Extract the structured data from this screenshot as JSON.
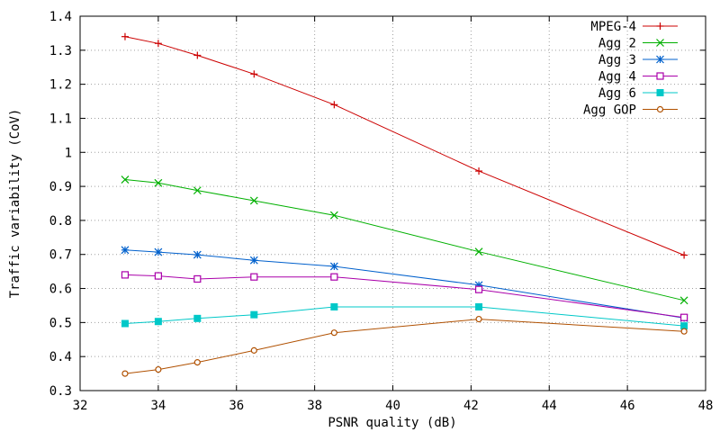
{
  "chart_data": {
    "type": "line",
    "xlabel": "PSNR quality (dB)",
    "ylabel": "Traffic variability (CoV)",
    "xlim": [
      32,
      48
    ],
    "ylim": [
      0.3,
      1.4
    ],
    "x_ticks": [
      32,
      34,
      36,
      38,
      40,
      42,
      44,
      46,
      48
    ],
    "y_ticks": [
      0.3,
      0.4,
      0.5,
      0.6,
      0.7,
      0.8,
      0.9,
      1,
      1.1,
      1.2,
      1.3,
      1.4
    ],
    "x_tick_labels": [
      "32",
      "34",
      "36",
      "38",
      "40",
      "42",
      "44",
      "46",
      "48"
    ],
    "y_tick_labels": [
      "0.3",
      "0.4",
      "0.5",
      "0.6",
      "0.7",
      "0.8",
      "0.9",
      "1",
      "1.1",
      "1.2",
      "1.3",
      "1.4"
    ],
    "grid": true,
    "legend_position": "top-right",
    "series": [
      {
        "name": "MPEG-4",
        "color": "#cc0000",
        "marker": "plus",
        "x": [
          33.15,
          34.0,
          35.0,
          36.45,
          38.5,
          42.2,
          47.45
        ],
        "y": [
          1.34,
          1.32,
          1.285,
          1.23,
          1.14,
          0.945,
          0.698
        ]
      },
      {
        "name": "Agg 2",
        "color": "#00b000",
        "marker": "cross",
        "x": [
          33.15,
          34.0,
          35.0,
          36.45,
          38.5,
          42.2,
          47.45
        ],
        "y": [
          0.92,
          0.91,
          0.888,
          0.858,
          0.815,
          0.708,
          0.565
        ]
      },
      {
        "name": "Agg 3",
        "color": "#0060cc",
        "marker": "star",
        "x": [
          33.15,
          34.0,
          35.0,
          36.45,
          38.5,
          42.2,
          47.45
        ],
        "y": [
          0.713,
          0.707,
          0.699,
          0.683,
          0.665,
          0.61,
          0.513
        ]
      },
      {
        "name": "Agg 4",
        "color": "#aa00aa",
        "marker": "square-open",
        "x": [
          33.15,
          34.0,
          35.0,
          36.45,
          38.5,
          42.2,
          47.45
        ],
        "y": [
          0.64,
          0.637,
          0.628,
          0.634,
          0.634,
          0.597,
          0.515
        ]
      },
      {
        "name": "Agg 6",
        "color": "#00c8c8",
        "marker": "square-filled",
        "x": [
          33.15,
          34.0,
          35.0,
          36.45,
          38.5,
          42.2,
          47.45
        ],
        "y": [
          0.497,
          0.503,
          0.512,
          0.523,
          0.546,
          0.546,
          0.49
        ]
      },
      {
        "name": "Agg GOP",
        "color": "#b05000",
        "marker": "circle-open",
        "x": [
          33.15,
          34.0,
          35.0,
          36.45,
          38.5,
          42.2,
          47.45
        ],
        "y": [
          0.35,
          0.362,
          0.383,
          0.418,
          0.47,
          0.51,
          0.474
        ]
      }
    ]
  }
}
